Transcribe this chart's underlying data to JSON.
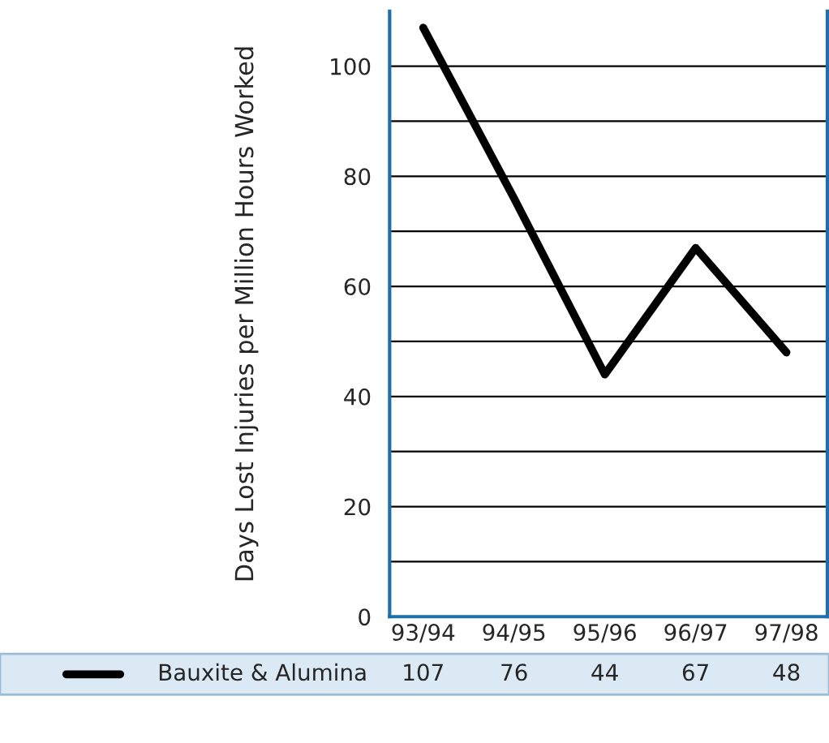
{
  "chart_data": {
    "type": "line",
    "ylabel": "Days Lost Injuries per Million Hours Worked",
    "categories": [
      "93/94",
      "94/95",
      "95/96",
      "96/97",
      "97/98"
    ],
    "series": [
      {
        "name": "Bauxite & Alumina",
        "color": "#000000",
        "values": [
          107,
          76,
          44,
          67,
          48
        ]
      }
    ],
    "ylim": [
      0,
      110
    ],
    "yticks": [
      0,
      {
        "value": 10,
        "label": null
      },
      20,
      {
        "value": 30,
        "label": null
      },
      40,
      {
        "value": 50,
        "label": null
      },
      60,
      {
        "value": 70,
        "label": null
      },
      80,
      {
        "value": 90,
        "label": null
      },
      100
    ],
    "grid": "y",
    "legend": "bottom",
    "data_labels": true,
    "marker": "none",
    "line_style": "solid"
  }
}
